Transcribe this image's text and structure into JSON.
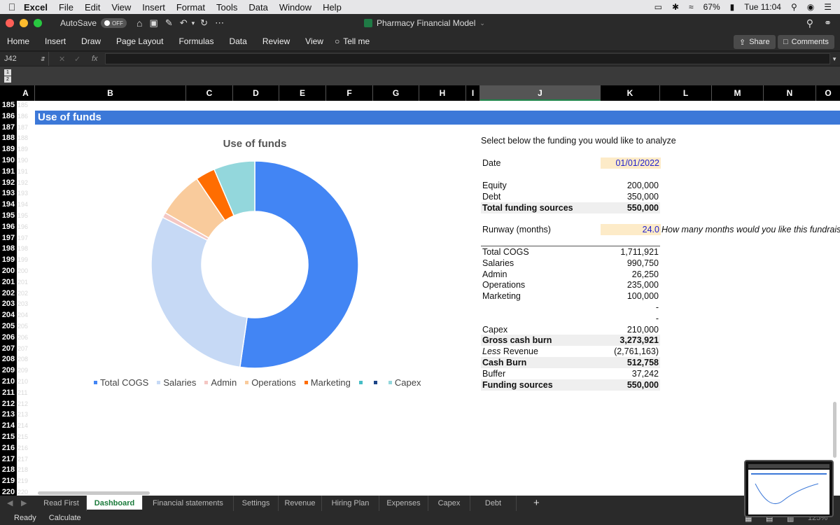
{
  "menubar": {
    "items": [
      "Excel",
      "File",
      "Edit",
      "View",
      "Insert",
      "Format",
      "Tools",
      "Data",
      "Window",
      "Help"
    ],
    "battery": "67%",
    "clock": "Tue 11:04"
  },
  "titlebar": {
    "autosave_label": "AutoSave",
    "autosave_state": "OFF",
    "doc_title": "Pharmacy Financial Model"
  },
  "ribbon": {
    "tabs": [
      "Home",
      "Insert",
      "Draw",
      "Page Layout",
      "Formulas",
      "Data",
      "Review",
      "View"
    ],
    "tell_me": "Tell me",
    "share": "Share",
    "comments": "Comments"
  },
  "formula_bar": {
    "cell_ref": "J42",
    "fx": "fx"
  },
  "outline_levels": [
    "1",
    "2"
  ],
  "columns": [
    "A",
    "B",
    "C",
    "D",
    "E",
    "F",
    "G",
    "H",
    "I",
    "J",
    "K",
    "L",
    "M",
    "N",
    "O"
  ],
  "rows": [
    "185",
    "186",
    "187",
    "188",
    "189",
    "190",
    "191",
    "192",
    "193",
    "194",
    "195",
    "196",
    "197",
    "198",
    "199",
    "200",
    "201",
    "202",
    "203",
    "204",
    "205",
    "206",
    "207",
    "208",
    "209",
    "210",
    "211",
    "212",
    "213",
    "214",
    "215",
    "216",
    "217",
    "218",
    "219",
    "220"
  ],
  "section_title": "Use of funds",
  "chart_data": {
    "type": "pie",
    "title": "Use of funds",
    "categories": [
      "Total COGS",
      "Salaries",
      "Admin",
      "Operations",
      "Marketing",
      "",
      "",
      "Capex"
    ],
    "values": [
      1711921,
      990750,
      26250,
      235000,
      100000,
      0,
      0,
      210000
    ],
    "colors": [
      "#4285f4",
      "#c6d9f5",
      "#f4c7c3",
      "#f9cb9c",
      "#ff6d01",
      "#46bdc6",
      "#1c4587",
      "#93d7dc"
    ],
    "legend_position": "bottom"
  },
  "panel": {
    "prompt": "Select below the funding you would like to analyze",
    "date_label": "Date",
    "date_value": "01/01/2022",
    "equity_label": "Equity",
    "equity_value": "200,000",
    "debt_label": "Debt",
    "debt_value": "350,000",
    "total_sources_label": "Total funding sources",
    "total_sources_value": "550,000",
    "runway_label": "Runway (months)",
    "runway_value": "24.0",
    "runway_note": "How many months would you like this fundraisi",
    "lines": [
      {
        "label": "Total COGS",
        "value": "1,711,921",
        "bold": false
      },
      {
        "label": "Salaries",
        "value": "990,750",
        "bold": false
      },
      {
        "label": "Admin",
        "value": "26,250",
        "bold": false
      },
      {
        "label": "Operations",
        "value": "235,000",
        "bold": false
      },
      {
        "label": "Marketing",
        "value": "100,000",
        "bold": false
      },
      {
        "label": "",
        "value": "-",
        "bold": false
      },
      {
        "label": "",
        "value": "-",
        "bold": false
      },
      {
        "label": "Capex",
        "value": "210,000",
        "bold": false
      },
      {
        "label": "Gross cash burn",
        "value": "3,273,921",
        "bold": true
      },
      {
        "label": "Revenue",
        "prefix": "Less",
        "value": "(2,761,163)",
        "bold": false
      },
      {
        "label": "Cash Burn",
        "value": "512,758",
        "bold": true
      },
      {
        "label": "Buffer",
        "value": "37,242",
        "bold": false
      },
      {
        "label": "Funding sources",
        "value": "550,000",
        "bold": true
      }
    ]
  },
  "sheet_tabs": [
    "Read First",
    "Dashboard",
    "Financial statements",
    "Settings",
    "Revenue",
    "Hiring Plan",
    "Expenses",
    "Capex",
    "Debt"
  ],
  "status": {
    "ready": "Ready",
    "calculate": "Calculate",
    "zoom": "125%"
  }
}
